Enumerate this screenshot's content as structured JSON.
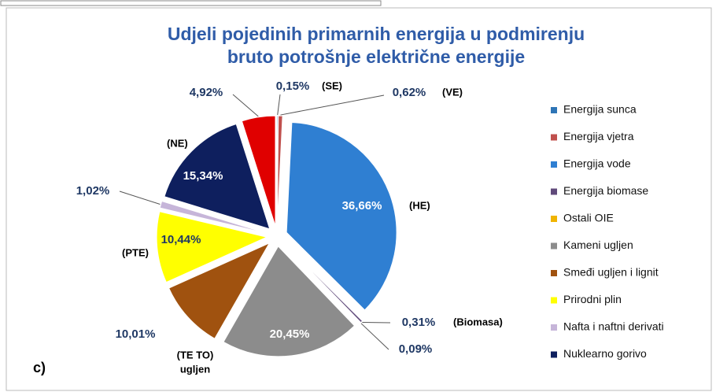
{
  "chart_data": {
    "type": "pie",
    "title": [
      "Udjeli pojedinih primarnih energija u podmirenju",
      "bruto potrošnje električne energije"
    ],
    "panel_label": "c)",
    "slices": [
      {
        "value": 0.15,
        "value_label": "0,15%",
        "tag": "(SE)",
        "color": "#2e75b6"
      },
      {
        "value": 0.62,
        "value_label": "0,62%",
        "tag": "(VE)",
        "color": "#c0504d"
      },
      {
        "value": 36.66,
        "value_label": "36,66%",
        "tag": "(HE)",
        "color": "#2f7fd2"
      },
      {
        "value": 0.31,
        "value_label": "0,31%",
        "tag": "(Biomasa)",
        "color": "#604a7b"
      },
      {
        "value": 0.09,
        "value_label": "0,09%",
        "color": "#f0b400"
      },
      {
        "value": 20.45,
        "value_label": "20,45%",
        "tag": [
          "(TE TO)",
          "ugljen"
        ],
        "color": "#8c8c8c"
      },
      {
        "value": 10.01,
        "value_label": "10,01%",
        "color": "#a0520f"
      },
      {
        "value": 10.44,
        "value_label": "10,44%",
        "tag": "(PTE)",
        "color": "#ffff00"
      },
      {
        "value": 1.02,
        "value_label": "1,02%",
        "color": "#c6b5d9"
      },
      {
        "value": 15.34,
        "value_label": "15,34%",
        "tag": "(NE)",
        "color": "#0e1f5e"
      },
      {
        "value": 4.92,
        "value_label": "4,92%",
        "color": "#e00000"
      }
    ],
    "legend": [
      {
        "name": "Energija sunca",
        "color": "#2e75b6"
      },
      {
        "name": "Energija vjetra",
        "color": "#c0504d"
      },
      {
        "name": "Energija vode",
        "color": "#2f7fd2"
      },
      {
        "name": "Energija biomase",
        "color": "#604a7b"
      },
      {
        "name": "Ostali OIE",
        "color": "#f0b400"
      },
      {
        "name": "Kameni ugljen",
        "color": "#8c8c8c"
      },
      {
        "name": "Smeđi ugljen i lignit",
        "color": "#a0520f"
      },
      {
        "name": "Prirodni plin",
        "color": "#ffff00"
      },
      {
        "name": "Nafta i naftni derivati",
        "color": "#c6b5d9"
      },
      {
        "name": "Nuklearno gorivo",
        "color": "#0e1f5e"
      }
    ]
  }
}
